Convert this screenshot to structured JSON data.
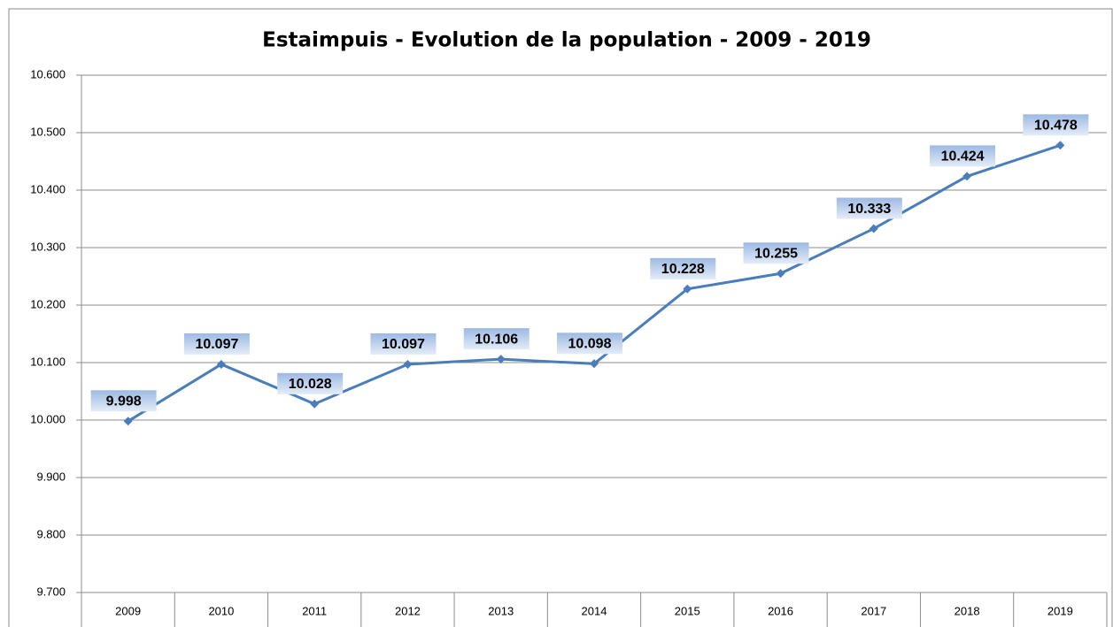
{
  "chart_data": {
    "type": "line",
    "title": "Estaimpuis - Evolution de la population - 2009 - 2019",
    "categories": [
      "2009",
      "2010",
      "2011",
      "2012",
      "2013",
      "2014",
      "2015",
      "2016",
      "2017",
      "2018",
      "2019"
    ],
    "series": [
      {
        "name": "Population",
        "color": "#4a7ebb",
        "values": [
          9998,
          10097,
          10028,
          10097,
          10106,
          10098,
          10228,
          10255,
          10333,
          10424,
          10478
        ],
        "value_labels": [
          "9.998",
          "10.097",
          "10.028",
          "10.097",
          "10.106",
          "10.098",
          "10.228",
          "10.255",
          "10.333",
          "10.424",
          "10.478"
        ]
      }
    ],
    "ylim": [
      9700,
      10600
    ],
    "yticks": [
      {
        "value": 9700,
        "label": "9.700"
      },
      {
        "value": 9800,
        "label": "9.800"
      },
      {
        "value": 9900,
        "label": "9.900"
      },
      {
        "value": 10000,
        "label": "10.000"
      },
      {
        "value": 10100,
        "label": "10.100"
      },
      {
        "value": 10200,
        "label": "10.200"
      },
      {
        "value": 10300,
        "label": "10.300"
      },
      {
        "value": 10400,
        "label": "10.400"
      },
      {
        "value": 10500,
        "label": "10.500"
      },
      {
        "value": 10600,
        "label": "10.600"
      }
    ],
    "grid": true
  }
}
